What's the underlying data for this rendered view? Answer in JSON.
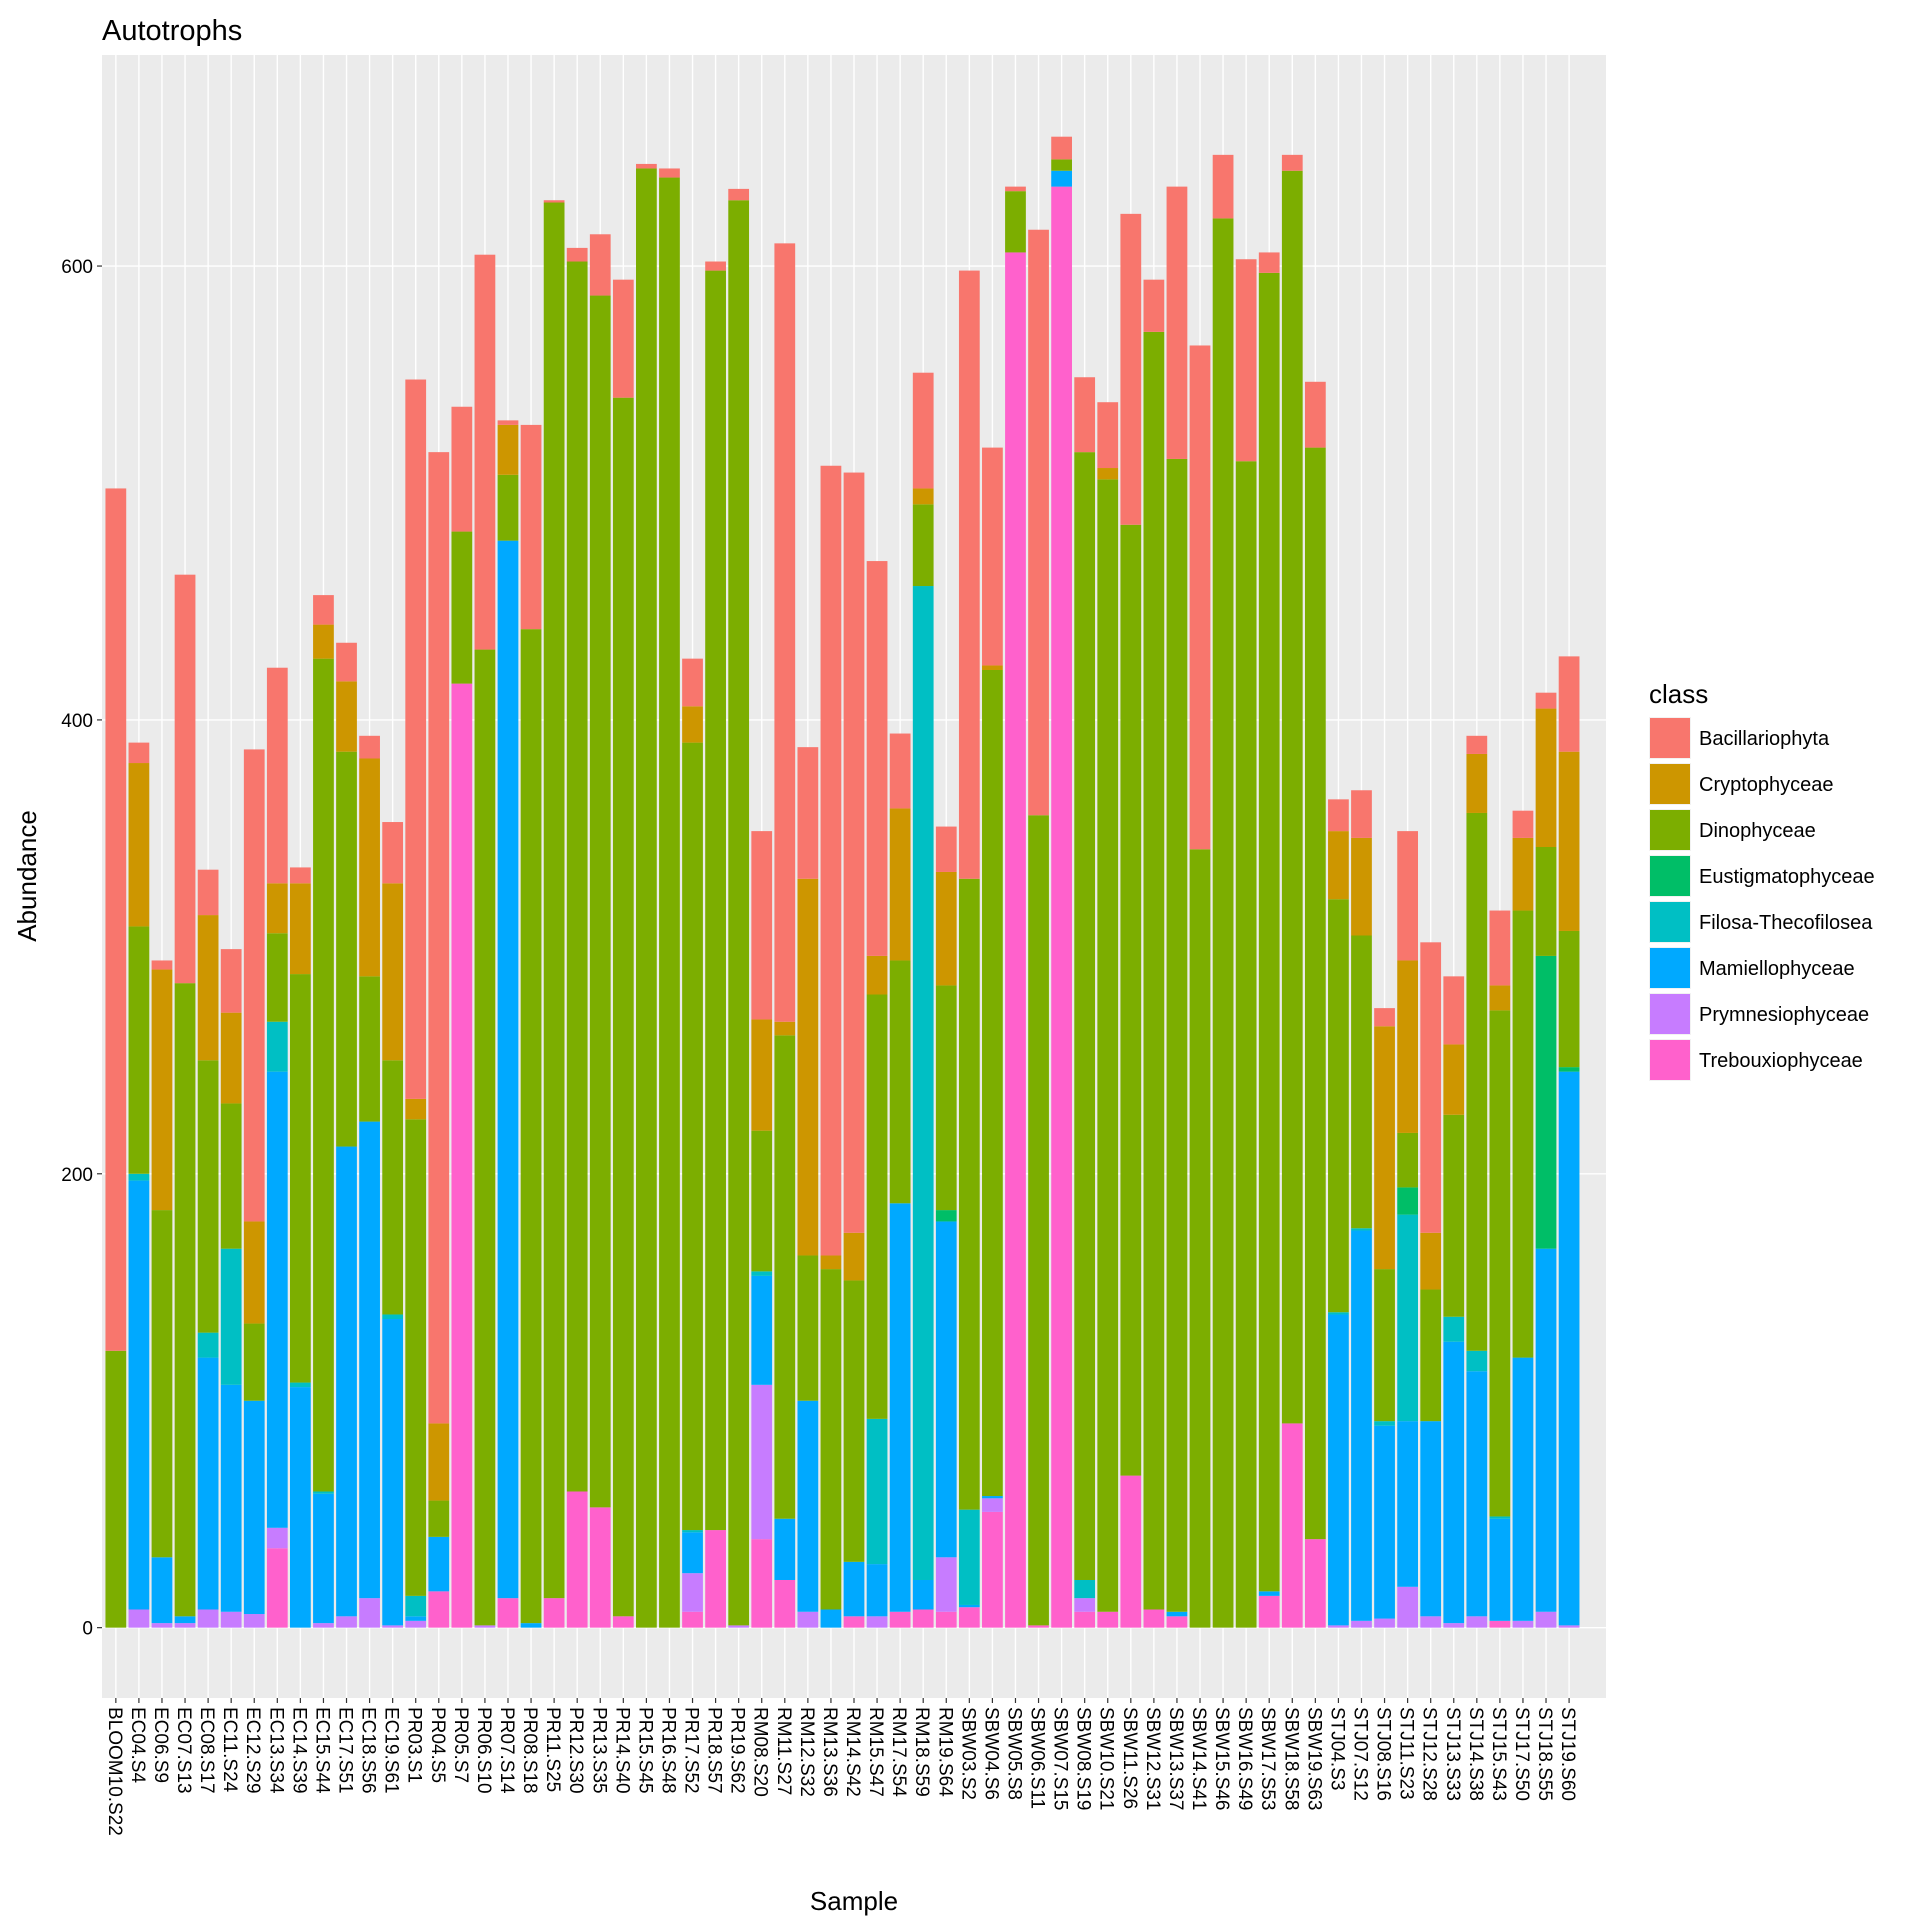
{
  "chart_data": {
    "type": "bar",
    "stacked": true,
    "title": "Autotrophs",
    "x_label": "Sample",
    "y_label": "Abundance",
    "legend_title": "class",
    "legend": "right",
    "grid": true,
    "ylim": [
      -31,
      693
    ],
    "yticks": [
      0,
      200,
      400,
      600
    ],
    "categories": [
      "BLOOM10.S22",
      "EC04.S4",
      "EC06.S9",
      "EC07.S13",
      "EC08.S17",
      "EC11.S24",
      "EC12.S29",
      "EC13.S34",
      "EC14.S39",
      "EC15.S44",
      "EC17.S51",
      "EC18.S56",
      "EC19.S61",
      "PR03.S1",
      "PR04.S5",
      "PR05.S7",
      "PR06.S10",
      "PR07.S14",
      "PR08.S18",
      "PR11.S25",
      "PR12.S30",
      "PR13.S35",
      "PR14.S40",
      "PR15.S45",
      "PR16.S48",
      "PR17.S52",
      "PR18.S57",
      "PR19.S62",
      "RM08.S20",
      "RM11.S27",
      "RM12.S32",
      "RM13.S36",
      "RM14.S42",
      "RM15.S47",
      "RM17.S54",
      "RM18.S59",
      "RM19.S64",
      "SBW03.S2",
      "SBW04.S6",
      "SBW05.S8",
      "SBW06.S11",
      "SBW07.S15",
      "SBW08.S19",
      "SBW10.S21",
      "SBW11.S26",
      "SBW12.S31",
      "SBW13.S37",
      "SBW14.S41",
      "SBW15.S46",
      "SBW16.S49",
      "SBW17.S53",
      "SBW18.S58",
      "SBW19.S63",
      "STJ04.S3",
      "STJ07.S12",
      "STJ08.S16",
      "STJ11.S23",
      "STJ12.S28",
      "STJ13.S33",
      "STJ14.S38",
      "STJ15.S43",
      "STJ17.S50",
      "STJ18.S55",
      "STJ19.S60"
    ],
    "series": [
      {
        "name": "Bacillariophyta",
        "color": "#F8766D",
        "values": [
          380,
          9,
          4,
          180,
          20,
          28,
          208,
          95,
          7,
          13,
          17,
          10,
          27,
          317,
          428,
          55,
          174,
          2,
          90,
          1,
          6,
          27,
          52,
          2,
          4,
          21,
          4,
          5,
          83,
          343,
          58,
          348,
          335,
          174,
          33,
          51,
          20,
          268,
          96,
          2,
          258,
          10,
          33,
          29,
          137,
          23,
          120,
          222,
          28,
          89,
          9,
          7,
          29,
          14,
          21,
          8,
          57,
          128,
          30,
          8,
          33,
          12,
          7,
          42
        ]
      },
      {
        "name": "Cryptophyceae",
        "color": "#CD9600",
        "values": [
          0,
          72,
          106,
          0,
          64,
          40,
          45,
          22,
          40,
          15,
          31,
          96,
          78,
          9,
          34,
          0,
          0,
          22,
          0,
          0,
          0,
          0,
          0,
          0,
          0,
          16,
          0,
          0,
          49,
          6,
          166,
          6,
          21,
          17,
          67,
          7,
          50,
          0,
          2,
          0,
          0,
          0,
          0,
          5,
          0,
          0,
          0,
          0,
          0,
          0,
          0,
          0,
          0,
          30,
          43,
          107,
          76,
          25,
          31,
          26,
          11,
          32,
          61,
          79
        ]
      },
      {
        "name": "Dinophyceae",
        "color": "#7CAE00",
        "values": [
          122,
          109,
          153,
          279,
          120,
          64,
          34,
          39,
          180,
          367,
          174,
          64,
          112,
          210,
          16,
          67,
          430,
          29,
          438,
          615,
          542,
          534,
          537,
          643,
          639,
          347,
          555,
          628,
          62,
          213,
          64,
          150,
          124,
          187,
          107,
          36,
          99,
          278,
          364,
          27,
          357,
          5,
          497,
          499,
          419,
          563,
          508,
          343,
          621,
          514,
          581,
          552,
          481,
          182,
          129,
          67,
          24,
          58,
          89,
          237,
          223,
          197,
          48,
          60
        ]
      },
      {
        "name": "Eustigmatophyceae",
        "color": "#00BE67",
        "values": [
          0,
          0,
          0,
          0,
          0,
          0,
          0,
          0,
          0,
          0,
          0,
          0,
          0,
          0,
          0,
          0,
          0,
          0,
          0,
          0,
          0,
          0,
          0,
          0,
          0,
          0,
          0,
          0,
          0,
          0,
          0,
          0,
          0,
          0,
          0,
          0,
          5,
          0,
          0,
          0,
          0,
          0,
          0,
          0,
          0,
          0,
          0,
          0,
          0,
          0,
          0,
          0,
          0,
          0,
          0,
          0,
          12,
          0,
          0,
          0,
          0,
          0,
          129,
          2
        ]
      },
      {
        "name": "Filosa-Thecofilosea",
        "color": "#00BFC4",
        "values": [
          0,
          3,
          0,
          0,
          11,
          60,
          0,
          22,
          2,
          1,
          0,
          0,
          2,
          9,
          0,
          0,
          0,
          0,
          0,
          0,
          0,
          0,
          0,
          0,
          0,
          1,
          0,
          0,
          2,
          0,
          0,
          0,
          0,
          64,
          0,
          438,
          0,
          42,
          0,
          0,
          0,
          0,
          8,
          0,
          0,
          0,
          0,
          0,
          0,
          0,
          0,
          0,
          0,
          1,
          1,
          2,
          91,
          0,
          11,
          9,
          1,
          0,
          0,
          0
        ]
      },
      {
        "name": "Mamiellophyceae",
        "color": "#00A9FF",
        "values": [
          0,
          189,
          29,
          3,
          111,
          100,
          94,
          201,
          106,
          57,
          207,
          210,
          135,
          2,
          24,
          0,
          0,
          466,
          2,
          0,
          0,
          0,
          0,
          0,
          0,
          18,
          0,
          0,
          48,
          27,
          93,
          8,
          24,
          23,
          180,
          13,
          148,
          1,
          1,
          0,
          0,
          7,
          0,
          0,
          0,
          0,
          2,
          0,
          0,
          0,
          2,
          0,
          0,
          137,
          172,
          85,
          73,
          86,
          124,
          108,
          45,
          116,
          160,
          244
        ]
      },
      {
        "name": "Prymnesiophyceae",
        "color": "#C77CFF",
        "values": [
          0,
          8,
          2,
          2,
          8,
          7,
          6,
          9,
          0,
          2,
          5,
          13,
          1,
          3,
          0,
          0,
          1,
          0,
          0,
          0,
          0,
          0,
          0,
          0,
          0,
          17,
          0,
          1,
          68,
          0,
          7,
          0,
          0,
          5,
          0,
          0,
          24,
          0,
          6,
          0,
          0,
          0,
          6,
          0,
          0,
          0,
          0,
          0,
          0,
          0,
          0,
          0,
          0,
          1,
          3,
          4,
          18,
          5,
          2,
          5,
          0,
          3,
          7,
          1
        ]
      },
      {
        "name": "Trebouxiophyceae",
        "color": "#FF61CC",
        "values": [
          0,
          0,
          0,
          0,
          0,
          0,
          0,
          35,
          0,
          0,
          0,
          0,
          0,
          0,
          16,
          416,
          0,
          13,
          0,
          13,
          60,
          53,
          5,
          0,
          0,
          7,
          43,
          0,
          39,
          21,
          0,
          0,
          5,
          0,
          7,
          8,
          7,
          9,
          51,
          606,
          1,
          635,
          7,
          7,
          67,
          8,
          5,
          0,
          0,
          0,
          14,
          90,
          39,
          0,
          0,
          0,
          0,
          0,
          0,
          0,
          3,
          0,
          0,
          0
        ]
      }
    ]
  }
}
